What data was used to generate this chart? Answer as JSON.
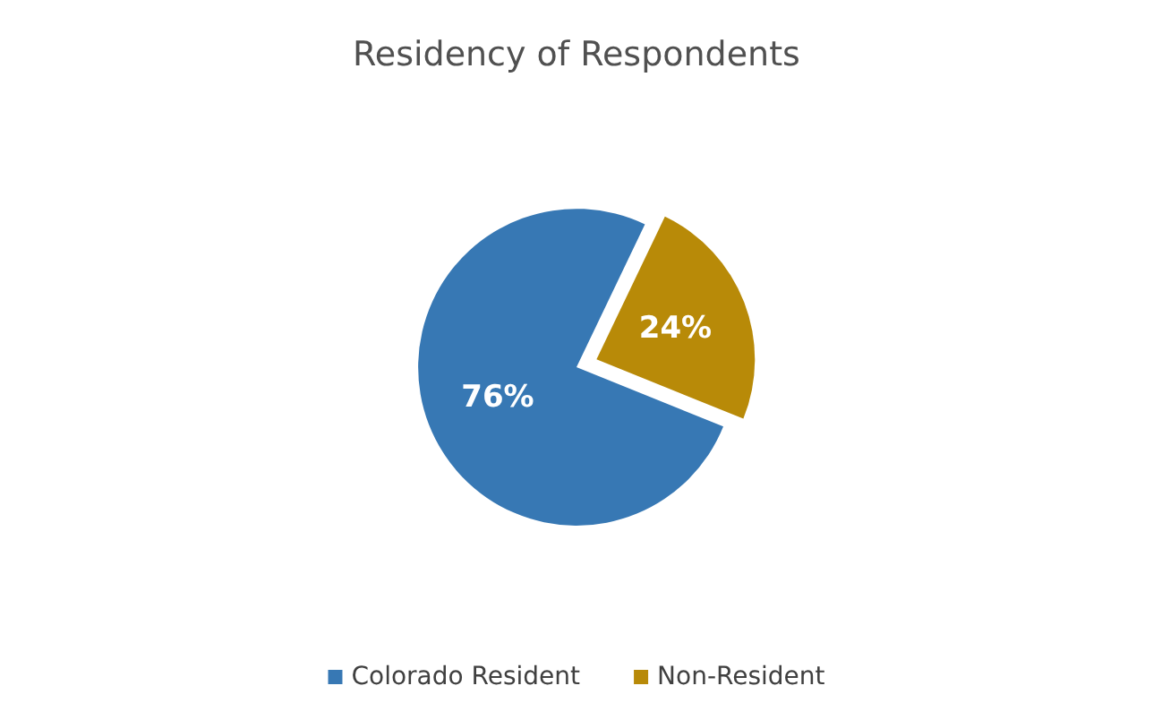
{
  "chart_data": {
    "type": "pie",
    "title": "Residency of Respondents",
    "categories": [
      "Colorado Resident",
      "Non-Resident"
    ],
    "values": [
      76,
      24
    ],
    "colors": [
      "#3778b4",
      "#b88a08"
    ],
    "value_labels": [
      "76%",
      "24%"
    ],
    "legend": "bottom"
  }
}
